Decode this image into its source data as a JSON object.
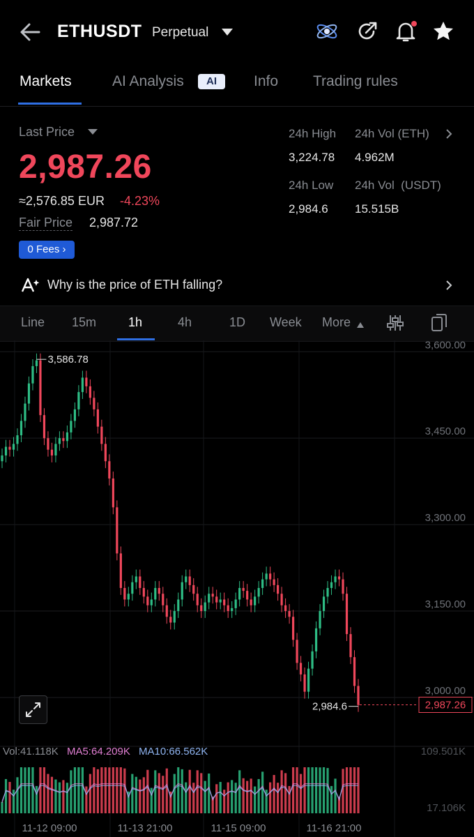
{
  "header": {
    "symbol": "ETHUSDT",
    "contract_type": "Perpetual",
    "icons": [
      "back-arrow-icon",
      "orbit-icon",
      "share-icon",
      "bell-icon",
      "star-icon"
    ]
  },
  "tabs": [
    {
      "label": "Markets",
      "active": true
    },
    {
      "label": "AI Analysis",
      "badge": "AI"
    },
    {
      "label": "Info"
    },
    {
      "label": "Trading rules"
    }
  ],
  "ticker": {
    "last_price_label": "Last Price",
    "last_price": "2,987.26",
    "eur_value": "≈2,576.85 EUR",
    "change": "-4.23%",
    "fair_price_label": "Fair Price",
    "fair_price": "2,987.72",
    "fees_label": "0 Fees ›"
  },
  "stats": {
    "high_label": "24h High",
    "high": "3,224.78",
    "vol_eth_label": "24h Vol (ETH)",
    "vol_eth": "4.962M",
    "low_label": "24h Low",
    "low": "2,984.6",
    "vol_usdt_label": "24h Vol  (USDT)",
    "vol_usdt": "15.515B"
  },
  "ai_prompt": "Why is the price of ETH falling?",
  "intervals": [
    {
      "label": "Line"
    },
    {
      "label": "15m"
    },
    {
      "label": "1h",
      "active": true
    },
    {
      "label": "4h"
    },
    {
      "label": "1D"
    },
    {
      "label": "Week"
    },
    {
      "label": "More"
    }
  ],
  "colors": {
    "up": "#2ebd85",
    "down": "#f0475b",
    "accent": "#2f6fe4",
    "ma5": "#e17fd3",
    "ma10": "#8fb4f0"
  },
  "chart_data": {
    "type": "candlestick",
    "y_ticks": [
      "3,600.00",
      "3,450.00",
      "3,300.00",
      "3,150.00",
      "3,000.00"
    ],
    "ylim": [
      2960,
      3610
    ],
    "x_ticks": [
      "11-12 09:00",
      "11-13 21:00",
      "11-15 09:00",
      "11-16 21:00"
    ],
    "max_label": "3,586.78",
    "min_label": "2,984.6",
    "current_price_label": "2,987.26",
    "current_price": 2987.26,
    "closes": [
      3420,
      3435,
      3430,
      3440,
      3455,
      3480,
      3510,
      3545,
      3575,
      3585,
      3490,
      3450,
      3430,
      3420,
      3440,
      3450,
      3445,
      3460,
      3480,
      3500,
      3530,
      3555,
      3540,
      3520,
      3500,
      3470,
      3440,
      3410,
      3380,
      3330,
      3250,
      3190,
      3170,
      3180,
      3200,
      3210,
      3190,
      3175,
      3160,
      3170,
      3190,
      3180,
      3160,
      3140,
      3130,
      3150,
      3170,
      3200,
      3210,
      3195,
      3180,
      3160,
      3150,
      3165,
      3180,
      3175,
      3165,
      3170,
      3160,
      3150,
      3155,
      3170,
      3190,
      3185,
      3170,
      3160,
      3175,
      3190,
      3205,
      3215,
      3205,
      3195,
      3180,
      3160,
      3150,
      3140,
      3100,
      3060,
      3040,
      3010,
      3050,
      3080,
      3120,
      3150,
      3175,
      3190,
      3200,
      3210,
      3205,
      3180,
      3110,
      3070,
      3020,
      2987
    ],
    "volume_label": "Vol:41.118K",
    "ma5_label": "MA5:64.209K",
    "ma10_label": "MA10:66.562K",
    "vol_axis_top": "109.501K",
    "vol_axis_bottom": "17.106K"
  }
}
